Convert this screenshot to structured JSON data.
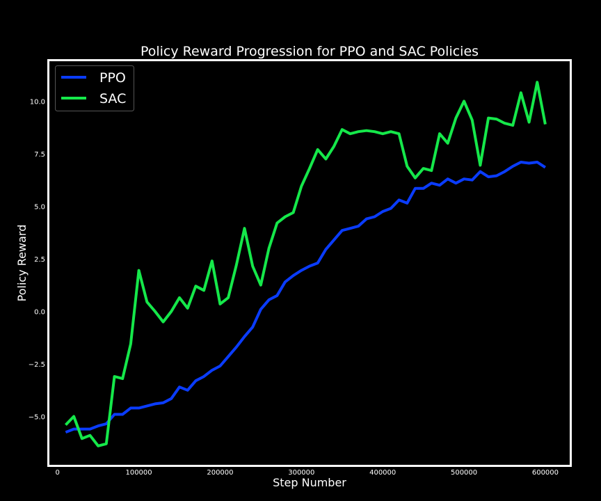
{
  "chart_data": {
    "type": "line",
    "title": "Policy Reward Progression for PPO and SAC Policies",
    "xlabel": "Step Number",
    "ylabel": "Policy Reward",
    "xlim": [
      -10000,
      630000
    ],
    "ylim": [
      -7.3,
      11.9
    ],
    "xticks": [
      0,
      100000,
      200000,
      300000,
      400000,
      500000,
      600000
    ],
    "yticks": [
      -5.0,
      -2.5,
      0.0,
      2.5,
      5.0,
      7.5,
      10.0
    ],
    "xtick_labels": [
      "0",
      "100000",
      "200000",
      "300000",
      "400000",
      "500000",
      "600000"
    ],
    "ytick_labels": [
      "−5.0",
      "−2.5",
      "0.0",
      "2.5",
      "5.0",
      "7.5",
      "10.0"
    ],
    "legend_position": "top-left",
    "grid": false,
    "background": "#000000",
    "x": [
      10000,
      20000,
      30000,
      40000,
      50000,
      60000,
      70000,
      80000,
      90000,
      100000,
      110000,
      120000,
      130000,
      140000,
      150000,
      160000,
      170000,
      180000,
      190000,
      200000,
      210000,
      220000,
      230000,
      240000,
      250000,
      260000,
      270000,
      280000,
      290000,
      300000,
      310000,
      320000,
      330000,
      340000,
      350000,
      360000,
      370000,
      380000,
      390000,
      400000,
      410000,
      420000,
      430000,
      440000,
      450000,
      460000,
      470000,
      480000,
      490000,
      500000,
      510000,
      520000,
      530000,
      540000,
      550000,
      560000,
      570000,
      580000,
      590000,
      600000
    ],
    "series": [
      {
        "name": "PPO",
        "color": "#0a3cff",
        "values": [
          -5.75,
          -5.6,
          -5.6,
          -5.6,
          -5.45,
          -5.35,
          -4.9,
          -4.9,
          -4.6,
          -4.6,
          -4.5,
          -4.4,
          -4.35,
          -4.15,
          -3.6,
          -3.75,
          -3.3,
          -3.1,
          -2.8,
          -2.6,
          -2.15,
          -1.7,
          -1.2,
          -0.75,
          0.1,
          0.55,
          0.75,
          1.4,
          1.7,
          1.95,
          2.15,
          2.3,
          2.95,
          3.4,
          3.85,
          3.95,
          4.05,
          4.4,
          4.5,
          4.75,
          4.9,
          5.3,
          5.15,
          5.85,
          5.85,
          6.1,
          6.0,
          6.3,
          6.1,
          6.3,
          6.25,
          6.65,
          6.4,
          6.45,
          6.65,
          6.9,
          7.1,
          7.05,
          7.1,
          6.85
        ]
      },
      {
        "name": "SAC",
        "color": "#15e84a",
        "values": [
          -5.4,
          -5.0,
          -6.05,
          -5.9,
          -6.4,
          -6.3,
          -3.1,
          -3.2,
          -1.55,
          1.95,
          0.45,
          0.0,
          -0.5,
          0.0,
          0.65,
          0.15,
          1.2,
          1.0,
          2.4,
          0.35,
          0.65,
          2.2,
          3.95,
          2.15,
          1.25,
          3.0,
          4.2,
          4.5,
          4.7,
          5.95,
          6.8,
          7.7,
          7.25,
          7.85,
          8.65,
          8.45,
          8.55,
          8.6,
          8.55,
          8.45,
          8.55,
          8.45,
          6.9,
          6.35,
          6.8,
          6.7,
          8.45,
          8.0,
          9.2,
          10.0,
          9.1,
          6.95,
          9.2,
          9.15,
          8.95,
          8.85,
          10.4,
          9.0,
          10.9,
          8.9
        ]
      }
    ]
  }
}
